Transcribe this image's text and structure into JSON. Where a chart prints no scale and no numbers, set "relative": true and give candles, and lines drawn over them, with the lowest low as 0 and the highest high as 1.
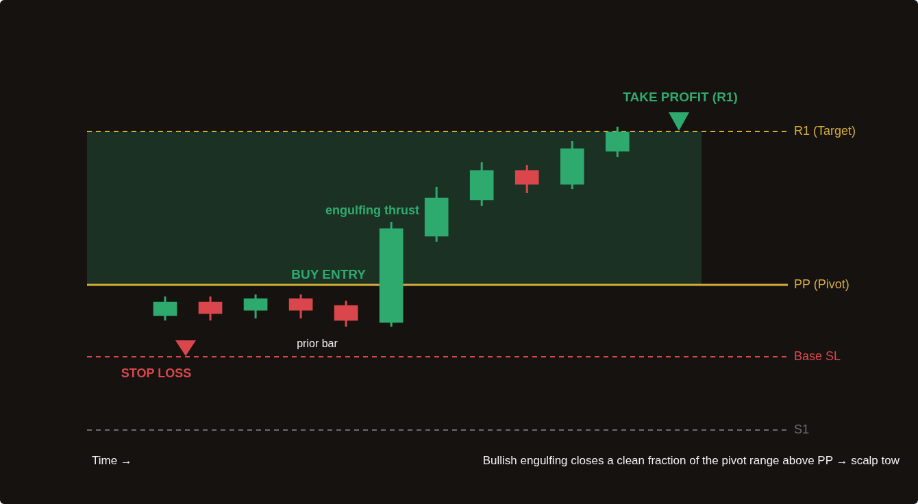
{
  "chart_data": {
    "type": "candlestick",
    "relative": true,
    "categories": [
      null,
      null,
      null,
      null,
      null,
      null,
      null,
      null,
      null,
      null,
      null
    ],
    "ohlc": [
      [
        0.055,
        0.151,
        0.031,
        0.123
      ],
      [
        0.123,
        0.151,
        0.031,
        0.065
      ],
      [
        0.082,
        0.161,
        0.041,
        0.14
      ],
      [
        0.14,
        0.161,
        0.041,
        0.082
      ],
      [
        0.106,
        0.13,
        0,
        0.031
      ],
      [
        0.021,
        0.524,
        0,
        0.49
      ],
      [
        0.452,
        0.699,
        0.425,
        0.644
      ],
      [
        0.634,
        0.822,
        0.603,
        0.781
      ],
      [
        0.781,
        0.808,
        0.668,
        0.712
      ],
      [
        0.712,
        0.928,
        0.688,
        0.89
      ],
      [
        0.877,
        1,
        0.849,
        0.973
      ]
    ],
    "colors": [
      "#2eaa6e",
      "#d9474c",
      "#2eaa6e",
      "#d9474c",
      "#d9474c",
      "#2eaa6e",
      "#2eaa6e",
      "#2eaa6e",
      "#d9474c",
      "#2eaa6e",
      "#2eaa6e"
    ],
    "ref_lines": [
      {
        "axis": "y",
        "value": 0.976,
        "label": "R1 (Target)",
        "color": "#d4ac3a",
        "line_style": "dashed"
      },
      {
        "axis": "y",
        "value": 0.209,
        "label": "PP (Pivot)",
        "color": "#d4ac3a",
        "line_style": "solid"
      },
      {
        "axis": "y",
        "value": -0.151,
        "label": "Base SL",
        "color": "#d9474c",
        "line_style": "dashed"
      },
      {
        "axis": "y",
        "value": -0.517,
        "label": "S1",
        "color": "#6b6b6b",
        "line_style": "dashed"
      }
    ],
    "bands": [
      {
        "axis": "y",
        "from": 0.209,
        "to": 0.976,
        "color": "#1b3124"
      }
    ],
    "annotations": [
      "Time →",
      "TAKE PROFIT (R1)",
      "engulfing thrust",
      "BUY ENTRY",
      "prior bar",
      "STOP LOSS",
      "Bullish engulfing closes a clean fraction of the pivot range above PP → scalp tow"
    ]
  }
}
